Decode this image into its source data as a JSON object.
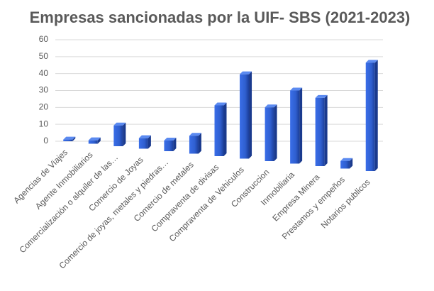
{
  "chart_data": {
    "type": "bar",
    "title": "Empresas sancionadas por la UIF- SBS (2021-2023)",
    "categories": [
      "Agencias de Viajes",
      "Agente Inmobiliarios",
      "Comercialización o alquiler de las…",
      "Comercio de Joyas",
      "Comercio de joyas, metales y piedras…",
      "Comercio de metales",
      "Compraventa de divisas",
      "Compraventa de Vehiculos",
      "Construccion",
      "Inmobiliaria",
      "Empresa Minera",
      "Prestamos y empeños",
      "Notarios publicos"
    ],
    "values": [
      1,
      2,
      12,
      6,
      6,
      10,
      28,
      46,
      29,
      39,
      36,
      4,
      56
    ],
    "color": "#2f5fd0",
    "ylim": [
      0,
      60
    ],
    "yticks": [
      0,
      10,
      20,
      30,
      40,
      50,
      60
    ],
    "grid": true
  }
}
